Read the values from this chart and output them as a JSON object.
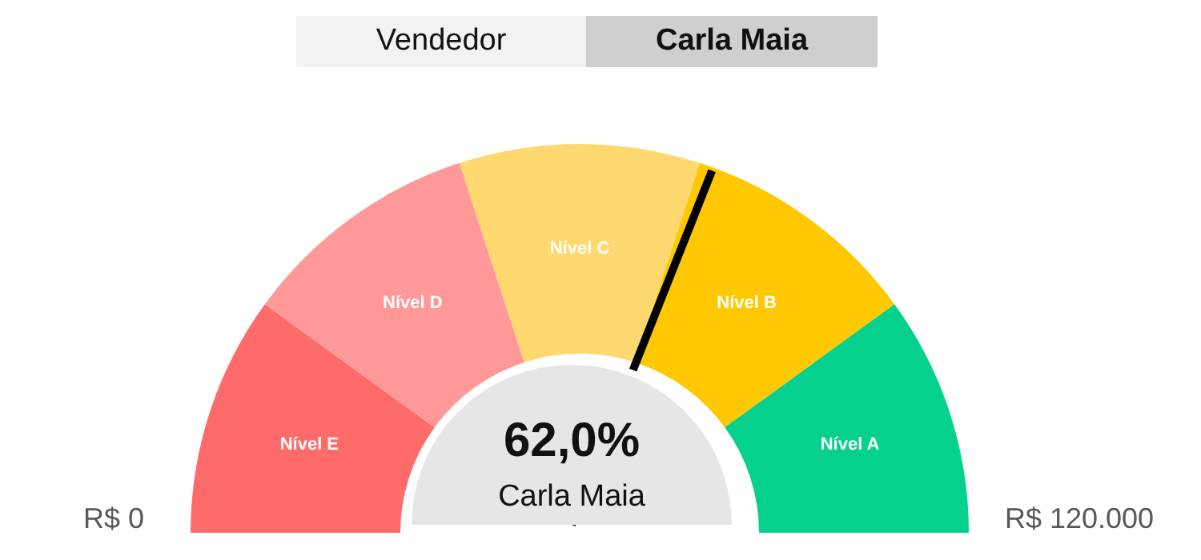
{
  "chart_data": {
    "type": "donut",
    "title": "Vendedor",
    "subtitle": "Carla Maia",
    "categories": [
      "Nível E",
      "Nível D",
      "Nível C",
      "Nível B",
      "Nível A"
    ],
    "values": [
      20,
      20,
      20,
      20,
      20
    ],
    "colors": [
      "#ff6b6b",
      "#ff9999",
      "#ffd970",
      "#ffc800",
      "#05d18c"
    ],
    "needle": "Nível B",
    "legend": false,
    "annotations": [
      "62,0%",
      "Carla Maia",
      "R$ 0",
      "R$ 120.000"
    ]
  }
}
